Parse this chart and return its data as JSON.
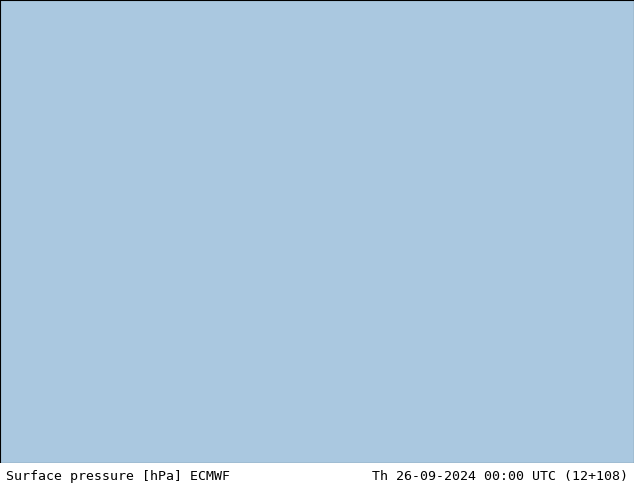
{
  "title_left": "Surface pressure [hPa] ECMWF",
  "title_right": "Th 26-09-2024 00:00 UTC (12+108)",
  "title_fontsize": 9.5,
  "title_color": "#000000",
  "background_color": "#ffffff",
  "fig_width": 6.34,
  "fig_height": 4.9,
  "dpi": 100,
  "ocean_color": "#aac8e0",
  "land_color": "#d4c89a",
  "land_green": "#b8c8a0",
  "mountain_color": "#c8b87a",
  "red": "#cc0000",
  "blue": "#0044cc",
  "black": "#000000",
  "label_fontsize": 6.5,
  "line_width": 1.1,
  "map_extent": [
    25,
    155,
    5,
    70
  ]
}
